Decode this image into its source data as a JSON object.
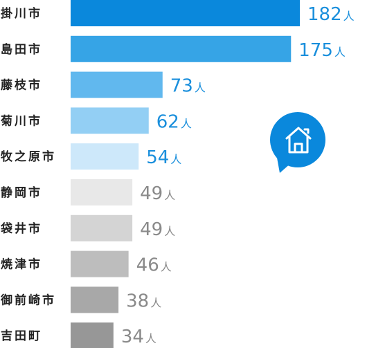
{
  "chart_data": {
    "type": "bar",
    "orientation": "horizontal",
    "categories": [
      "掛川市",
      "島田市",
      "藤枝市",
      "菊川市",
      "牧之原市",
      "静岡市",
      "袋井市",
      "焼津市",
      "御前崎市",
      "吉田町"
    ],
    "values": [
      182,
      175,
      73,
      62,
      54,
      49,
      49,
      46,
      38,
      34
    ],
    "unit": "人",
    "bar_colors": [
      "#0a88dc",
      "#36a4e6",
      "#61b8ee",
      "#93cff4",
      "#cde8fa",
      "#e8e8e8",
      "#d4d4d4",
      "#bdbdbd",
      "#a8a8a8",
      "#979797"
    ],
    "label_colors": [
      "#1a8fdc",
      "#1a8fdc",
      "#1a8fdc",
      "#1a8fdc",
      "#1a8fdc",
      "#8a8a8a",
      "#8a8a8a",
      "#8a8a8a",
      "#8a8a8a",
      "#8a8a8a"
    ],
    "title": "",
    "xlabel": "",
    "ylabel": "",
    "xlim": [
      0,
      182
    ],
    "grid": false,
    "legend": "none"
  },
  "decor": {
    "icon": "house-speech-bubble-icon",
    "icon_color": "#0a88dc"
  }
}
